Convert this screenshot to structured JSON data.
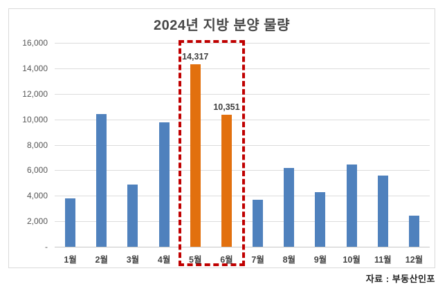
{
  "title": "2024년 지방 분양 물량",
  "source": "자료 : 부동산인포",
  "chart_data": {
    "type": "bar",
    "title": "2024년 지방 분양 물량",
    "categories": [
      "1월",
      "2월",
      "3월",
      "4월",
      "5월",
      "6월",
      "7월",
      "8월",
      "9월",
      "10월",
      "11월",
      "12월"
    ],
    "values": [
      3800,
      10400,
      4900,
      9750,
      14317,
      10351,
      3700,
      6200,
      4300,
      6450,
      5600,
      2450
    ],
    "value_labels": [
      "",
      "",
      "",
      "",
      "14,317",
      "10,351",
      "",
      "",
      "",
      "",
      "",
      ""
    ],
    "xlabel": "",
    "ylabel": "",
    "ylim": [
      0,
      16000
    ],
    "y_tick_step": 2000,
    "y_tick_labels": [
      "16,000",
      "14,000",
      "12,000",
      "10,000",
      "8,000",
      "6,000",
      "4,000",
      "2,000",
      "-"
    ],
    "grid": true,
    "legend": false,
    "highlight": {
      "indices": [
        4,
        5
      ],
      "style": "dashed-box"
    },
    "colors": {
      "bar": "#4f81bd",
      "highlight_bar": "#e2700e",
      "box": "#c00000",
      "gridline": "#dcdcdc",
      "axis_line": "#c6c6c6",
      "title_text": "#474747",
      "tick_text": "#555555",
      "label_text": "#404040"
    }
  }
}
